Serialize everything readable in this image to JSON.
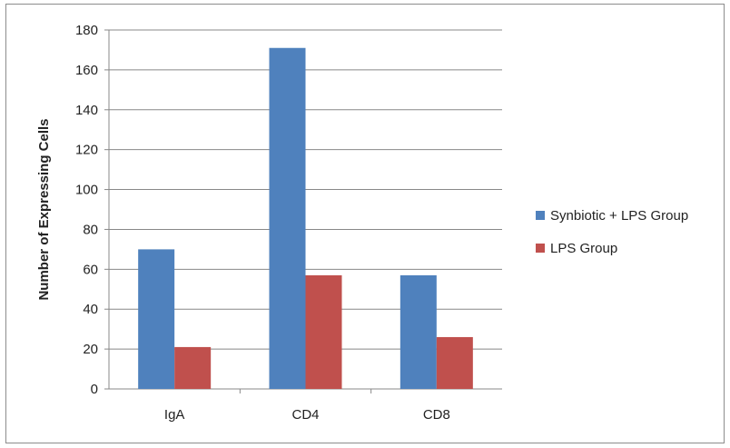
{
  "chart_data": {
    "type": "bar",
    "title": "",
    "xlabel": "",
    "ylabel": "Number of Expressing Cells",
    "categories": [
      "IgA",
      "CD4",
      "CD8"
    ],
    "series": [
      {
        "name": "Synbiotic + LPS Group",
        "values": [
          70,
          171,
          57
        ],
        "color": "#4f81bd"
      },
      {
        "name": "LPS Group",
        "values": [
          21,
          57,
          26
        ],
        "color": "#c0504d"
      }
    ],
    "ylim": [
      0,
      180
    ],
    "yticks": [
      0,
      20,
      40,
      60,
      80,
      100,
      120,
      140,
      160,
      180
    ],
    "grid": true,
    "legend": "right"
  }
}
